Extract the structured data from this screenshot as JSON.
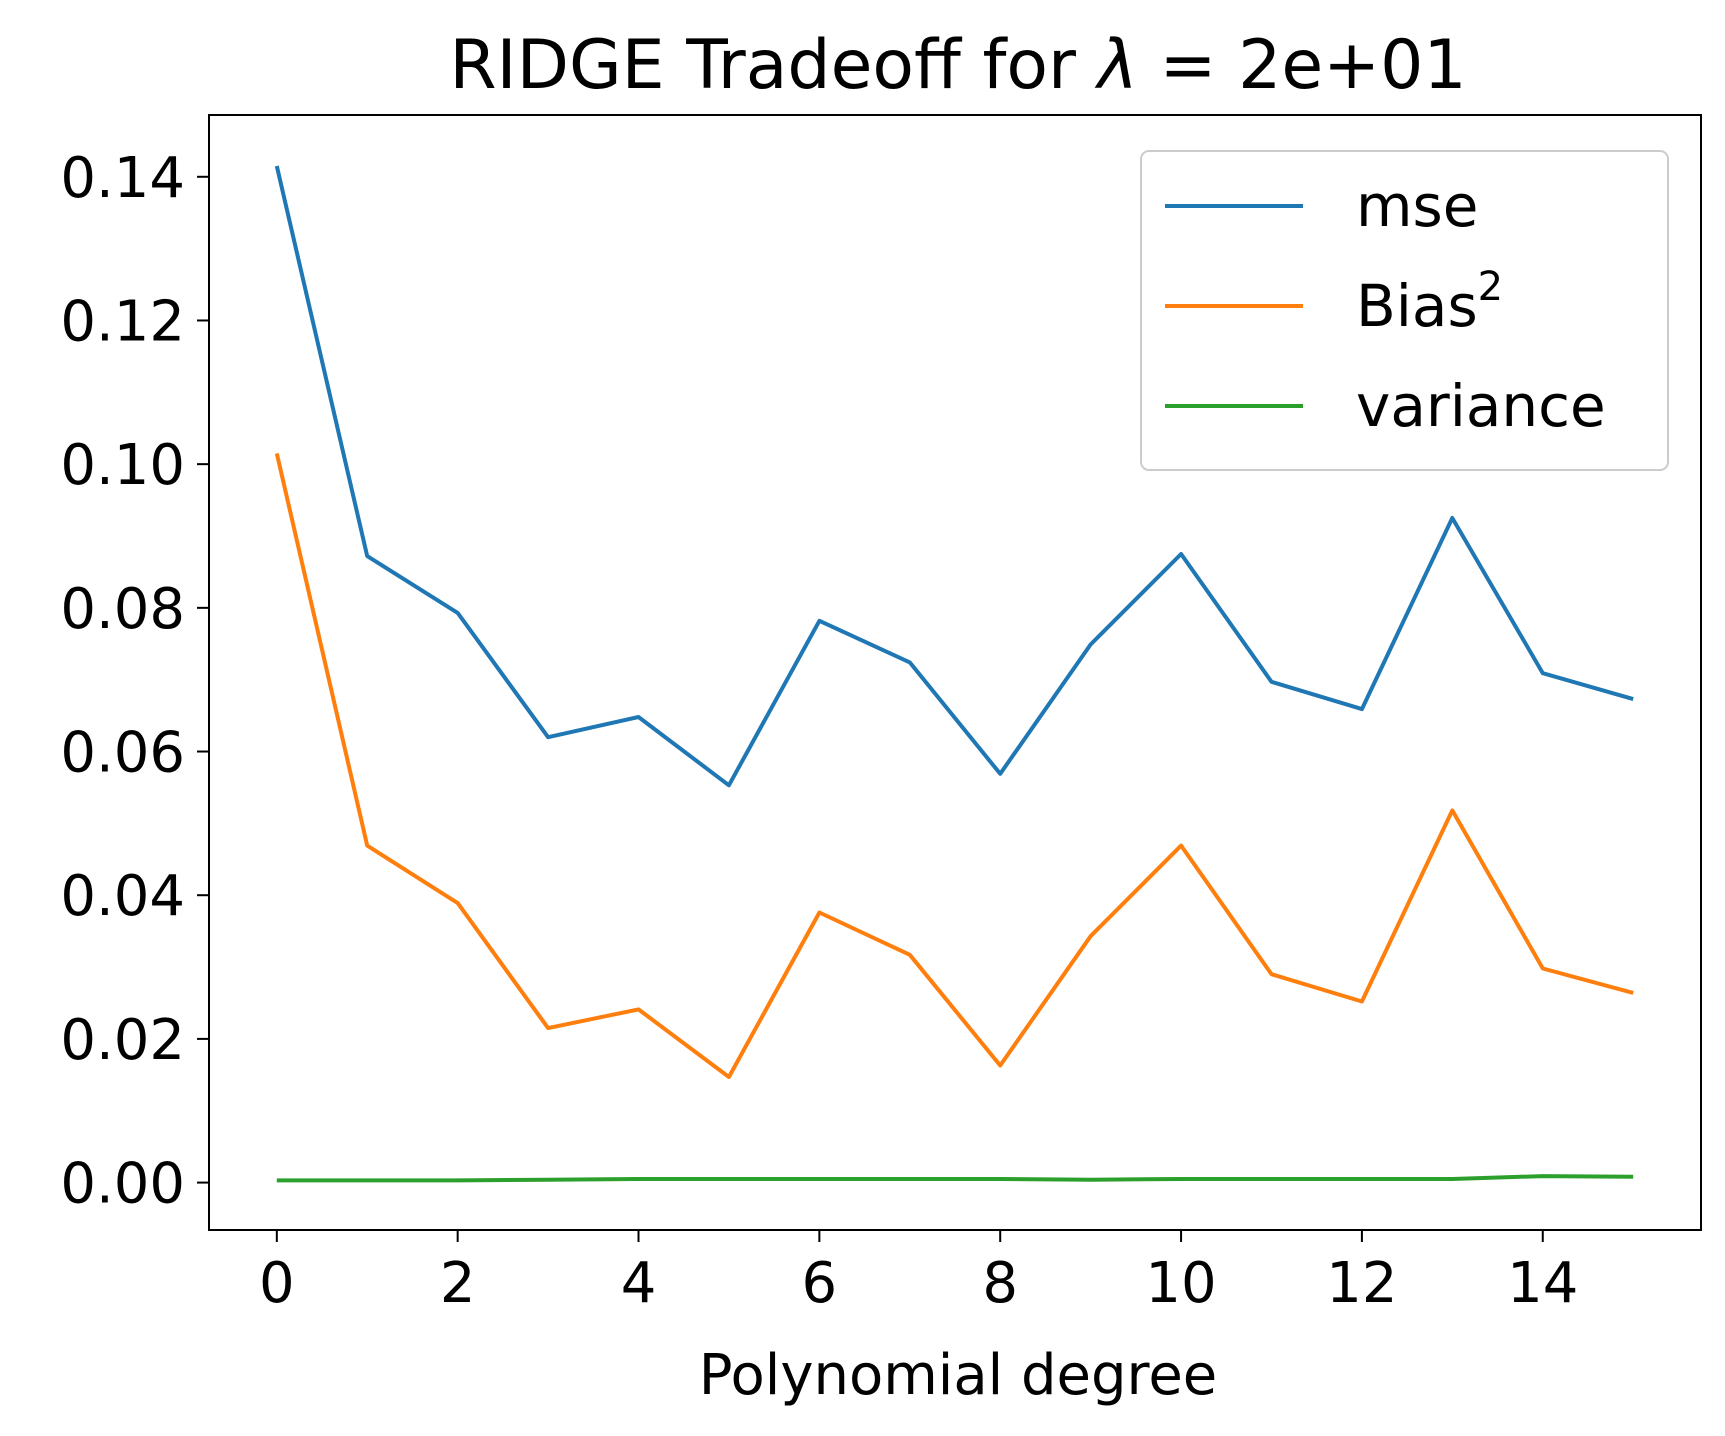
{
  "chart_data": {
    "type": "line",
    "title": {
      "prefix": "RIDGE Tradeoff for ",
      "symbol": "λ",
      "suffix": " =  2e+01"
    },
    "xlabel": "Polynomial degree",
    "ylabel": "",
    "x": [
      0,
      1,
      2,
      3,
      4,
      5,
      6,
      7,
      8,
      9,
      10,
      11,
      12,
      13,
      14,
      15
    ],
    "xticks": [
      0,
      2,
      4,
      6,
      8,
      10,
      12,
      14
    ],
    "xtick_labels": [
      "0",
      "2",
      "4",
      "6",
      "8",
      "10",
      "12",
      "14"
    ],
    "yticks": [
      0.0,
      0.02,
      0.04,
      0.06,
      0.08,
      0.1,
      0.12,
      0.14
    ],
    "ytick_labels": [
      "0.00",
      "0.02",
      "0.04",
      "0.06",
      "0.08",
      "0.10",
      "0.12",
      "0.14"
    ],
    "xlim": [
      -0.75,
      15.75
    ],
    "ylim": [
      -0.0066,
      0.1486
    ],
    "grid": false,
    "legend_position": "top-right",
    "series": [
      {
        "name": "mse",
        "color": "#1f77b4",
        "values": [
          0.1415,
          0.0872,
          0.0793,
          0.062,
          0.0648,
          0.0553,
          0.0782,
          0.0724,
          0.0569,
          0.0749,
          0.0875,
          0.0697,
          0.0659,
          0.0925,
          0.0709,
          0.0673
        ]
      },
      {
        "name": "Bias",
        "name_sup": "2",
        "color": "#ff7f0e",
        "values": [
          0.1015,
          0.0469,
          0.0389,
          0.0215,
          0.0241,
          0.0147,
          0.0376,
          0.0317,
          0.0163,
          0.0343,
          0.0469,
          0.029,
          0.0252,
          0.0518,
          0.0298,
          0.0264
        ]
      },
      {
        "name": "variance",
        "color": "#2ca02c",
        "values": [
          0.0003,
          0.0003,
          0.0003,
          0.0004,
          0.0005,
          0.0005,
          0.0005,
          0.0005,
          0.0005,
          0.0004,
          0.0005,
          0.0005,
          0.0005,
          0.0005,
          0.0009,
          0.0008
        ]
      }
    ]
  }
}
